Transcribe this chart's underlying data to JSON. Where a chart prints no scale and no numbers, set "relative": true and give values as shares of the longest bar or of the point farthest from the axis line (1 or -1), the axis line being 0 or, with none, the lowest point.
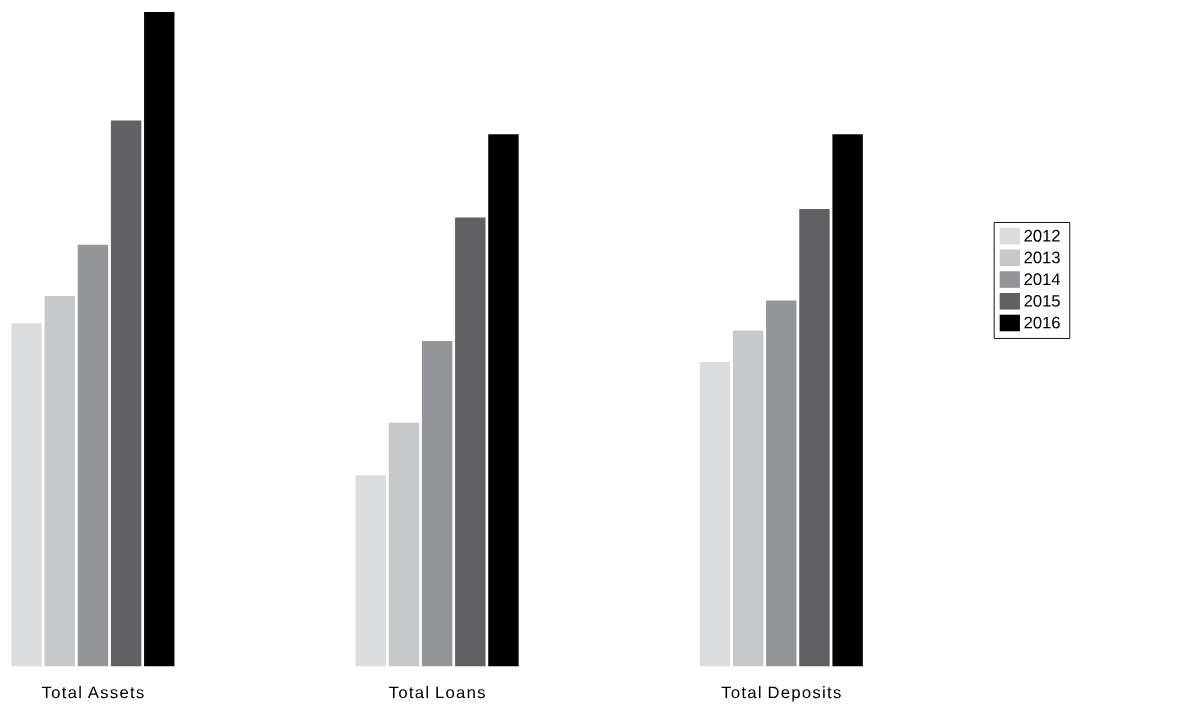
{
  "chart_data": {
    "type": "bar",
    "relative": true,
    "legend": "right",
    "categories": [
      "Total Assets",
      "Total Loans",
      "Total Deposits"
    ],
    "series": [
      {
        "name": "2012",
        "color": "#dcdddf",
        "values": [
          0.524,
          0.292,
          0.465
        ]
      },
      {
        "name": "2013",
        "color": "#c7c8ca",
        "values": [
          0.566,
          0.372,
          0.513
        ]
      },
      {
        "name": "2014",
        "color": "#939598",
        "values": [
          0.644,
          0.497,
          0.559
        ]
      },
      {
        "name": "2015",
        "color": "#616163",
        "values": [
          0.834,
          0.686,
          0.699
        ]
      },
      {
        "name": "2016",
        "color": "#000000",
        "values": [
          1,
          0.813,
          0.813
        ]
      }
    ]
  }
}
